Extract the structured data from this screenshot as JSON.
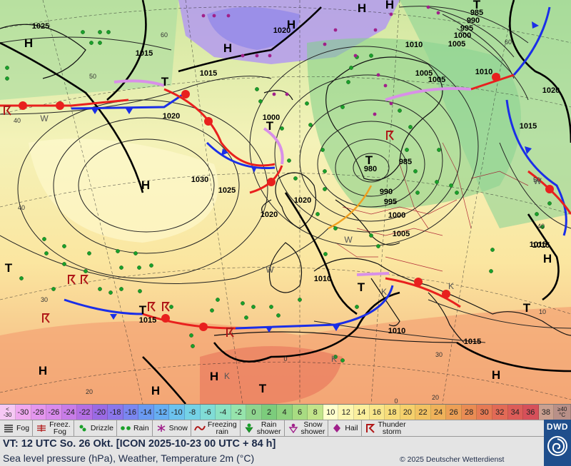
{
  "map": {
    "isobar_labels": [
      "1025",
      "1015",
      "1015",
      "1020",
      "1020",
      "1000",
      "1030",
      "1025",
      "1020",
      "1010",
      "1015",
      "1015",
      "1010",
      "1015",
      "1020",
      "1015",
      "1015",
      "980",
      "990",
      "995",
      "1000",
      "1005",
      "985",
      "985",
      "990",
      "995",
      "1000",
      "1005",
      "1005",
      "1010",
      "1020",
      "1010",
      "1005"
    ],
    "pressure_centers": [
      "H",
      "H",
      "H",
      "H",
      "H",
      "T",
      "T",
      "T",
      "H",
      "T",
      "T",
      "H",
      "H",
      "T",
      "T",
      "H",
      "H",
      "H",
      "T",
      "T"
    ],
    "latitude_labels": [
      "60",
      "50",
      "40",
      "40",
      "30",
      "20",
      "60",
      "50",
      "40",
      "30",
      "20",
      "0",
      "0",
      "10"
    ],
    "weather_letters": [
      "W",
      "W",
      "W",
      "W",
      "K",
      "K",
      "K",
      "K"
    ]
  },
  "temperature_scale": {
    "first": [
      "<",
      "-30"
    ],
    "values": [
      "-30",
      "-28",
      "-26",
      "-24",
      "-22",
      "-20",
      "-18",
      "-16",
      "-14",
      "-12",
      "-10",
      "-8",
      "-6",
      "-4",
      "-2",
      "0",
      "2",
      "4",
      "6",
      "8",
      "10",
      "12",
      "14",
      "16",
      "18",
      "20",
      "22",
      "24",
      "26",
      "28",
      "30",
      "32",
      "34",
      "36",
      "38"
    ],
    "colors": [
      "#f0a8f0",
      "#e496ee",
      "#d88aec",
      "#c87ce8",
      "#b46ee4",
      "#9a6ae4",
      "#8a76ea",
      "#7a86f0",
      "#6a9af2",
      "#66aef2",
      "#6cc2ee",
      "#74d2e6",
      "#80dcd6",
      "#8ce2c2",
      "#96e4ac",
      "#8ed48e",
      "#7ccc7c",
      "#8ed27e",
      "#a8dc82",
      "#c2e48a",
      "#ffffcc",
      "#fdf6b0",
      "#fbef9c",
      "#f9e68a",
      "#f7dc7a",
      "#f5d06c",
      "#f2c262",
      "#efb25a",
      "#ec9f56",
      "#e98c54",
      "#e67a54",
      "#e26a56",
      "#dc5c58",
      "#d6505a",
      "#c9a090"
    ],
    "last": [
      "≥40",
      "°C"
    ]
  },
  "legend": [
    {
      "icon": "fog-icon",
      "label": "Fog"
    },
    {
      "icon": "freezing-fog-icon",
      "label": "Freez.\nFog"
    },
    {
      "icon": "drizzle-icon",
      "label": "Drizzle"
    },
    {
      "icon": "rain-icon",
      "label": "Rain"
    },
    {
      "icon": "snow-icon",
      "label": "Snow"
    },
    {
      "icon": "freezing-rain-icon",
      "label": "Freezing\nrain"
    },
    {
      "icon": "rain-shower-icon",
      "label": "Rain\nshower"
    },
    {
      "icon": "snow-shower-icon",
      "label": "Snow\nshower"
    },
    {
      "icon": "hail-icon",
      "label": "Hail"
    },
    {
      "icon": "thunderstorm-icon",
      "label": "Thunder\nstorm"
    }
  ],
  "info": {
    "valid_time": "VT: 12 UTC So.  26 Okt. [ICON 2025-10-23  00 UTC + 84 h]",
    "description": "Sea level pressure (hPa), Weather, Temperature 2m (°C)",
    "copyright": "© 2025 Deutscher Wetterdienst"
  },
  "branding": {
    "logo_text": "DWD"
  },
  "colors": {
    "warm_front": "#e8201e",
    "cold_front": "#1a2ee8",
    "occluded_front": "#d890e8",
    "rain_symbol": "#1aa02a",
    "snow_symbol": "#a0208a",
    "thunder_symbol": "#b01818",
    "dwd_blue": "#1f4e8c"
  }
}
